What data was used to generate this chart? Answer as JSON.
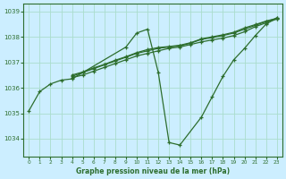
{
  "title": "Graphe pression niveau de la mer (hPa)",
  "background_color": "#cceeff",
  "grid_color": "#aaddcc",
  "line_color": "#2d6e2d",
  "xlim": [
    -0.5,
    23.5
  ],
  "ylim": [
    1033.3,
    1039.3
  ],
  "yticks": [
    1034,
    1035,
    1036,
    1037,
    1038,
    1039
  ],
  "xticks": [
    0,
    1,
    2,
    3,
    4,
    5,
    6,
    7,
    8,
    9,
    10,
    11,
    12,
    13,
    14,
    15,
    16,
    17,
    18,
    19,
    20,
    21,
    22,
    23
  ],
  "lines": [
    {
      "x": [
        0,
        1,
        2,
        3,
        4,
        5,
        6,
        7,
        8,
        9,
        10,
        11,
        12,
        13,
        14,
        15,
        16,
        17,
        18,
        19,
        20,
        21,
        22,
        23
      ],
      "y": [
        1035.1,
        1035.85,
        1036.15,
        1036.3,
        1036.35,
        null,
        null,
        null,
        null,
        1037.6,
        1038.15,
        1038.3,
        1036.6,
        1033.85,
        1033.75,
        null,
        1034.85,
        1035.65,
        1036.45,
        1037.1,
        1037.55,
        1038.05,
        1038.5,
        1038.75
      ]
    },
    {
      "x": [
        4,
        5,
        6,
        7,
        8,
        9,
        10,
        11,
        12,
        13,
        14,
        15,
        16,
        17,
        18,
        19,
        20,
        21,
        22,
        23
      ],
      "y": [
        1036.4,
        1036.5,
        1036.65,
        1036.8,
        1036.95,
        1037.1,
        1037.25,
        1037.35,
        1037.45,
        1037.55,
        1037.6,
        1037.7,
        1037.8,
        1037.88,
        1037.95,
        1038.05,
        1038.2,
        1038.4,
        1038.55,
        1038.7
      ]
    },
    {
      "x": [
        4,
        5,
        6,
        7,
        8,
        9,
        10,
        11,
        12,
        13,
        14,
        15,
        16,
        17,
        18,
        19,
        20,
        21,
        22,
        23
      ],
      "y": [
        1036.45,
        1036.6,
        1036.75,
        1036.9,
        1037.05,
        1037.2,
        1037.35,
        1037.45,
        1037.55,
        1037.6,
        1037.65,
        1037.75,
        1037.9,
        1037.97,
        1038.05,
        1038.15,
        1038.3,
        1038.45,
        1038.6,
        1038.72
      ]
    },
    {
      "x": [
        4,
        5,
        6,
        7,
        8,
        9,
        10,
        11,
        12,
        13,
        14,
        15,
        16,
        17,
        18,
        19,
        20,
        21,
        22,
        23
      ],
      "y": [
        1036.5,
        1036.62,
        1036.78,
        1036.92,
        1037.08,
        1037.22,
        1037.38,
        1037.5,
        1037.58,
        1037.62,
        1037.67,
        1037.77,
        1037.92,
        1038.0,
        1038.08,
        1038.18,
        1038.35,
        1038.48,
        1038.62,
        1038.73
      ]
    }
  ]
}
